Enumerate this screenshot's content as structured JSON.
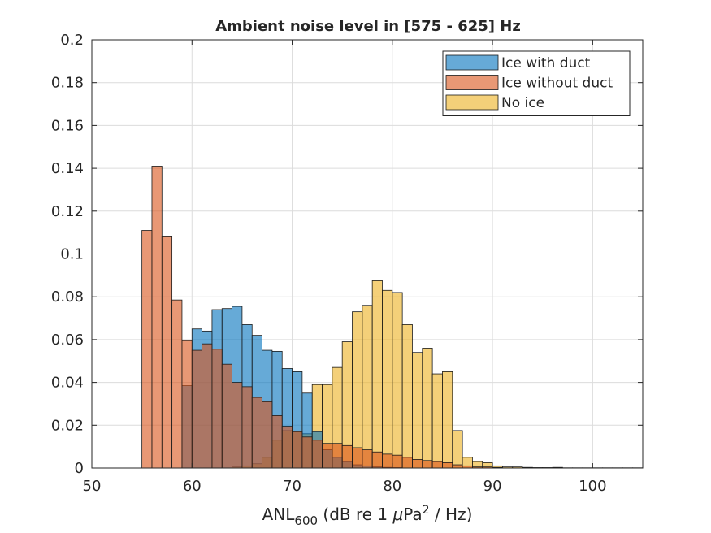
{
  "chart_data": {
    "type": "bar",
    "title": "Ambient noise level in [575 - 625] Hz",
    "xlabel": {
      "main": "ANL",
      "subscript": "600",
      "unit_before": " (dB re 1 ",
      "mu": "μ",
      "unit_pa": "Pa",
      "superscript": "2",
      "unit_after": " / Hz)"
    },
    "ylabel": "",
    "xlim": [
      50,
      105
    ],
    "ylim": [
      0,
      0.2
    ],
    "x_ticks": [
      "50",
      "60",
      "70",
      "80",
      "90",
      "100"
    ],
    "y_ticks": [
      "0",
      "0.02",
      "0.04",
      "0.06",
      "0.08",
      "0.1",
      "0.12",
      "0.14",
      "0.16",
      "0.18",
      "0.2"
    ],
    "grid": true,
    "legend_position": "top-right",
    "bin_width": 1,
    "series": [
      {
        "name": "No ice",
        "color": "#EDB120",
        "bins": [
          [
            55,
            0.0
          ],
          [
            56,
            0.0
          ],
          [
            57,
            0.0
          ],
          [
            58,
            0.0
          ],
          [
            59,
            0.0
          ],
          [
            60,
            0.0
          ],
          [
            61,
            0.0
          ],
          [
            62,
            0.0
          ],
          [
            63,
            0.0
          ],
          [
            64,
            0.0005
          ],
          [
            65,
            0.001
          ],
          [
            66,
            0.002
          ],
          [
            67,
            0.005
          ],
          [
            68,
            0.013
          ],
          [
            69,
            0.0175
          ],
          [
            70,
            0.017
          ],
          [
            71,
            0.016
          ],
          [
            72,
            0.039
          ],
          [
            73,
            0.039
          ],
          [
            74,
            0.047
          ],
          [
            75,
            0.059
          ],
          [
            76,
            0.073
          ],
          [
            77,
            0.076
          ],
          [
            78,
            0.0875
          ],
          [
            79,
            0.083
          ],
          [
            80,
            0.082
          ],
          [
            81,
            0.067
          ],
          [
            82,
            0.054
          ],
          [
            83,
            0.056
          ],
          [
            84,
            0.044
          ],
          [
            85,
            0.045
          ],
          [
            86,
            0.0175
          ],
          [
            87,
            0.005
          ],
          [
            88,
            0.003
          ],
          [
            89,
            0.0025
          ],
          [
            90,
            0.001
          ],
          [
            91,
            0.0005
          ],
          [
            92,
            0.0005
          ],
          [
            93,
            0.0003
          ],
          [
            94,
            0.0002
          ],
          [
            95,
            0.0002
          ],
          [
            96,
            0.0003
          ],
          [
            97,
            0.0001
          ],
          [
            98,
            0.0001
          ],
          [
            99,
            0.0001
          ],
          [
            100,
            0.0001
          ],
          [
            101,
            0.0001
          ],
          [
            102,
            0.0001
          ],
          [
            103,
            0.0001
          ],
          [
            104,
            0.0001
          ]
        ]
      },
      {
        "name": "Ice with duct",
        "color": "#0072BD",
        "bins": [
          [
            55,
            0.0
          ],
          [
            56,
            0.0
          ],
          [
            57,
            0.0
          ],
          [
            58,
            0.0
          ],
          [
            59,
            0.0385
          ],
          [
            60,
            0.065
          ],
          [
            61,
            0.064
          ],
          [
            62,
            0.074
          ],
          [
            63,
            0.0745
          ],
          [
            64,
            0.0755
          ],
          [
            65,
            0.067
          ],
          [
            66,
            0.062
          ],
          [
            67,
            0.055
          ],
          [
            68,
            0.0545
          ],
          [
            69,
            0.0465
          ],
          [
            70,
            0.045
          ],
          [
            71,
            0.035
          ],
          [
            72,
            0.017
          ],
          [
            73,
            0.0085
          ],
          [
            74,
            0.005
          ],
          [
            75,
            0.003
          ],
          [
            76,
            0.0015
          ],
          [
            77,
            0.001
          ],
          [
            78,
            0.0005
          ],
          [
            79,
            0.0003
          ],
          [
            80,
            0.0002
          ]
        ]
      },
      {
        "name": "Ice without duct",
        "color": "#D95319",
        "bins": [
          [
            55,
            0.111
          ],
          [
            56,
            0.141
          ],
          [
            57,
            0.108
          ],
          [
            58,
            0.0785
          ],
          [
            59,
            0.0595
          ],
          [
            60,
            0.055
          ],
          [
            61,
            0.058
          ],
          [
            62,
            0.0555
          ],
          [
            63,
            0.0485
          ],
          [
            64,
            0.04
          ],
          [
            65,
            0.038
          ],
          [
            66,
            0.033
          ],
          [
            67,
            0.031
          ],
          [
            68,
            0.0245
          ],
          [
            69,
            0.0195
          ],
          [
            70,
            0.017
          ],
          [
            71,
            0.0145
          ],
          [
            72,
            0.013
          ],
          [
            73,
            0.0115
          ],
          [
            74,
            0.0115
          ],
          [
            75,
            0.0105
          ],
          [
            76,
            0.0095
          ],
          [
            77,
            0.0085
          ],
          [
            78,
            0.0075
          ],
          [
            79,
            0.0065
          ],
          [
            80,
            0.006
          ],
          [
            81,
            0.005
          ],
          [
            82,
            0.004
          ],
          [
            83,
            0.0035
          ],
          [
            84,
            0.003
          ],
          [
            85,
            0.0025
          ],
          [
            86,
            0.0015
          ],
          [
            87,
            0.001
          ],
          [
            88,
            0.0005
          ],
          [
            89,
            0.0005
          ],
          [
            90,
            0.0003
          ]
        ]
      }
    ],
    "legend_order": [
      "Ice with duct",
      "Ice without duct",
      "No ice"
    ]
  }
}
